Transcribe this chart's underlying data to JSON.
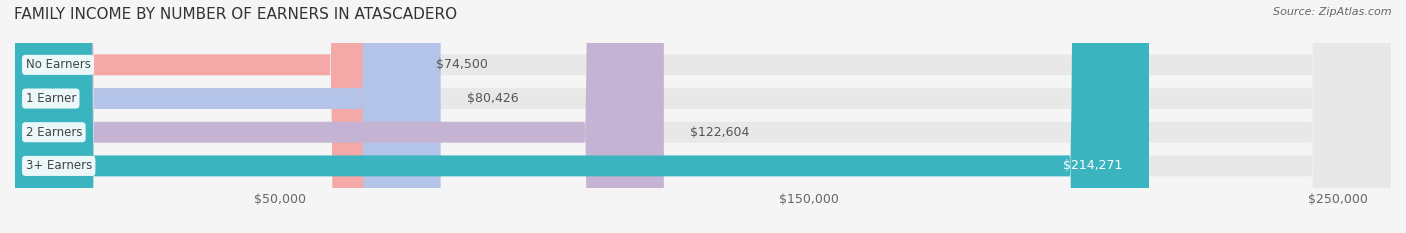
{
  "title": "FAMILY INCOME BY NUMBER OF EARNERS IN ATASCADERO",
  "source": "Source: ZipAtlas.com",
  "categories": [
    "No Earners",
    "1 Earner",
    "2 Earners",
    "3+ Earners"
  ],
  "values": [
    74500,
    80426,
    122604,
    214271
  ],
  "labels": [
    "$74,500",
    "$80,426",
    "$122,604",
    "$214,271"
  ],
  "bar_colors": [
    "#f4a9a8",
    "#b3c4e8",
    "#c5b3d4",
    "#3ab5c0"
  ],
  "label_colors": [
    "#555555",
    "#555555",
    "#555555",
    "#ffffff"
  ],
  "bg_color": "#f5f5f5",
  "bar_bg_color": "#e8e8e8",
  "xlim": [
    0,
    260000
  ],
  "xticks": [
    50000,
    150000,
    250000
  ],
  "xticklabels": [
    "$50,000",
    "$150,000",
    "$250,000"
  ],
  "title_fontsize": 11,
  "bar_height": 0.62,
  "figsize": [
    14.06,
    2.33
  ],
  "dpi": 100
}
